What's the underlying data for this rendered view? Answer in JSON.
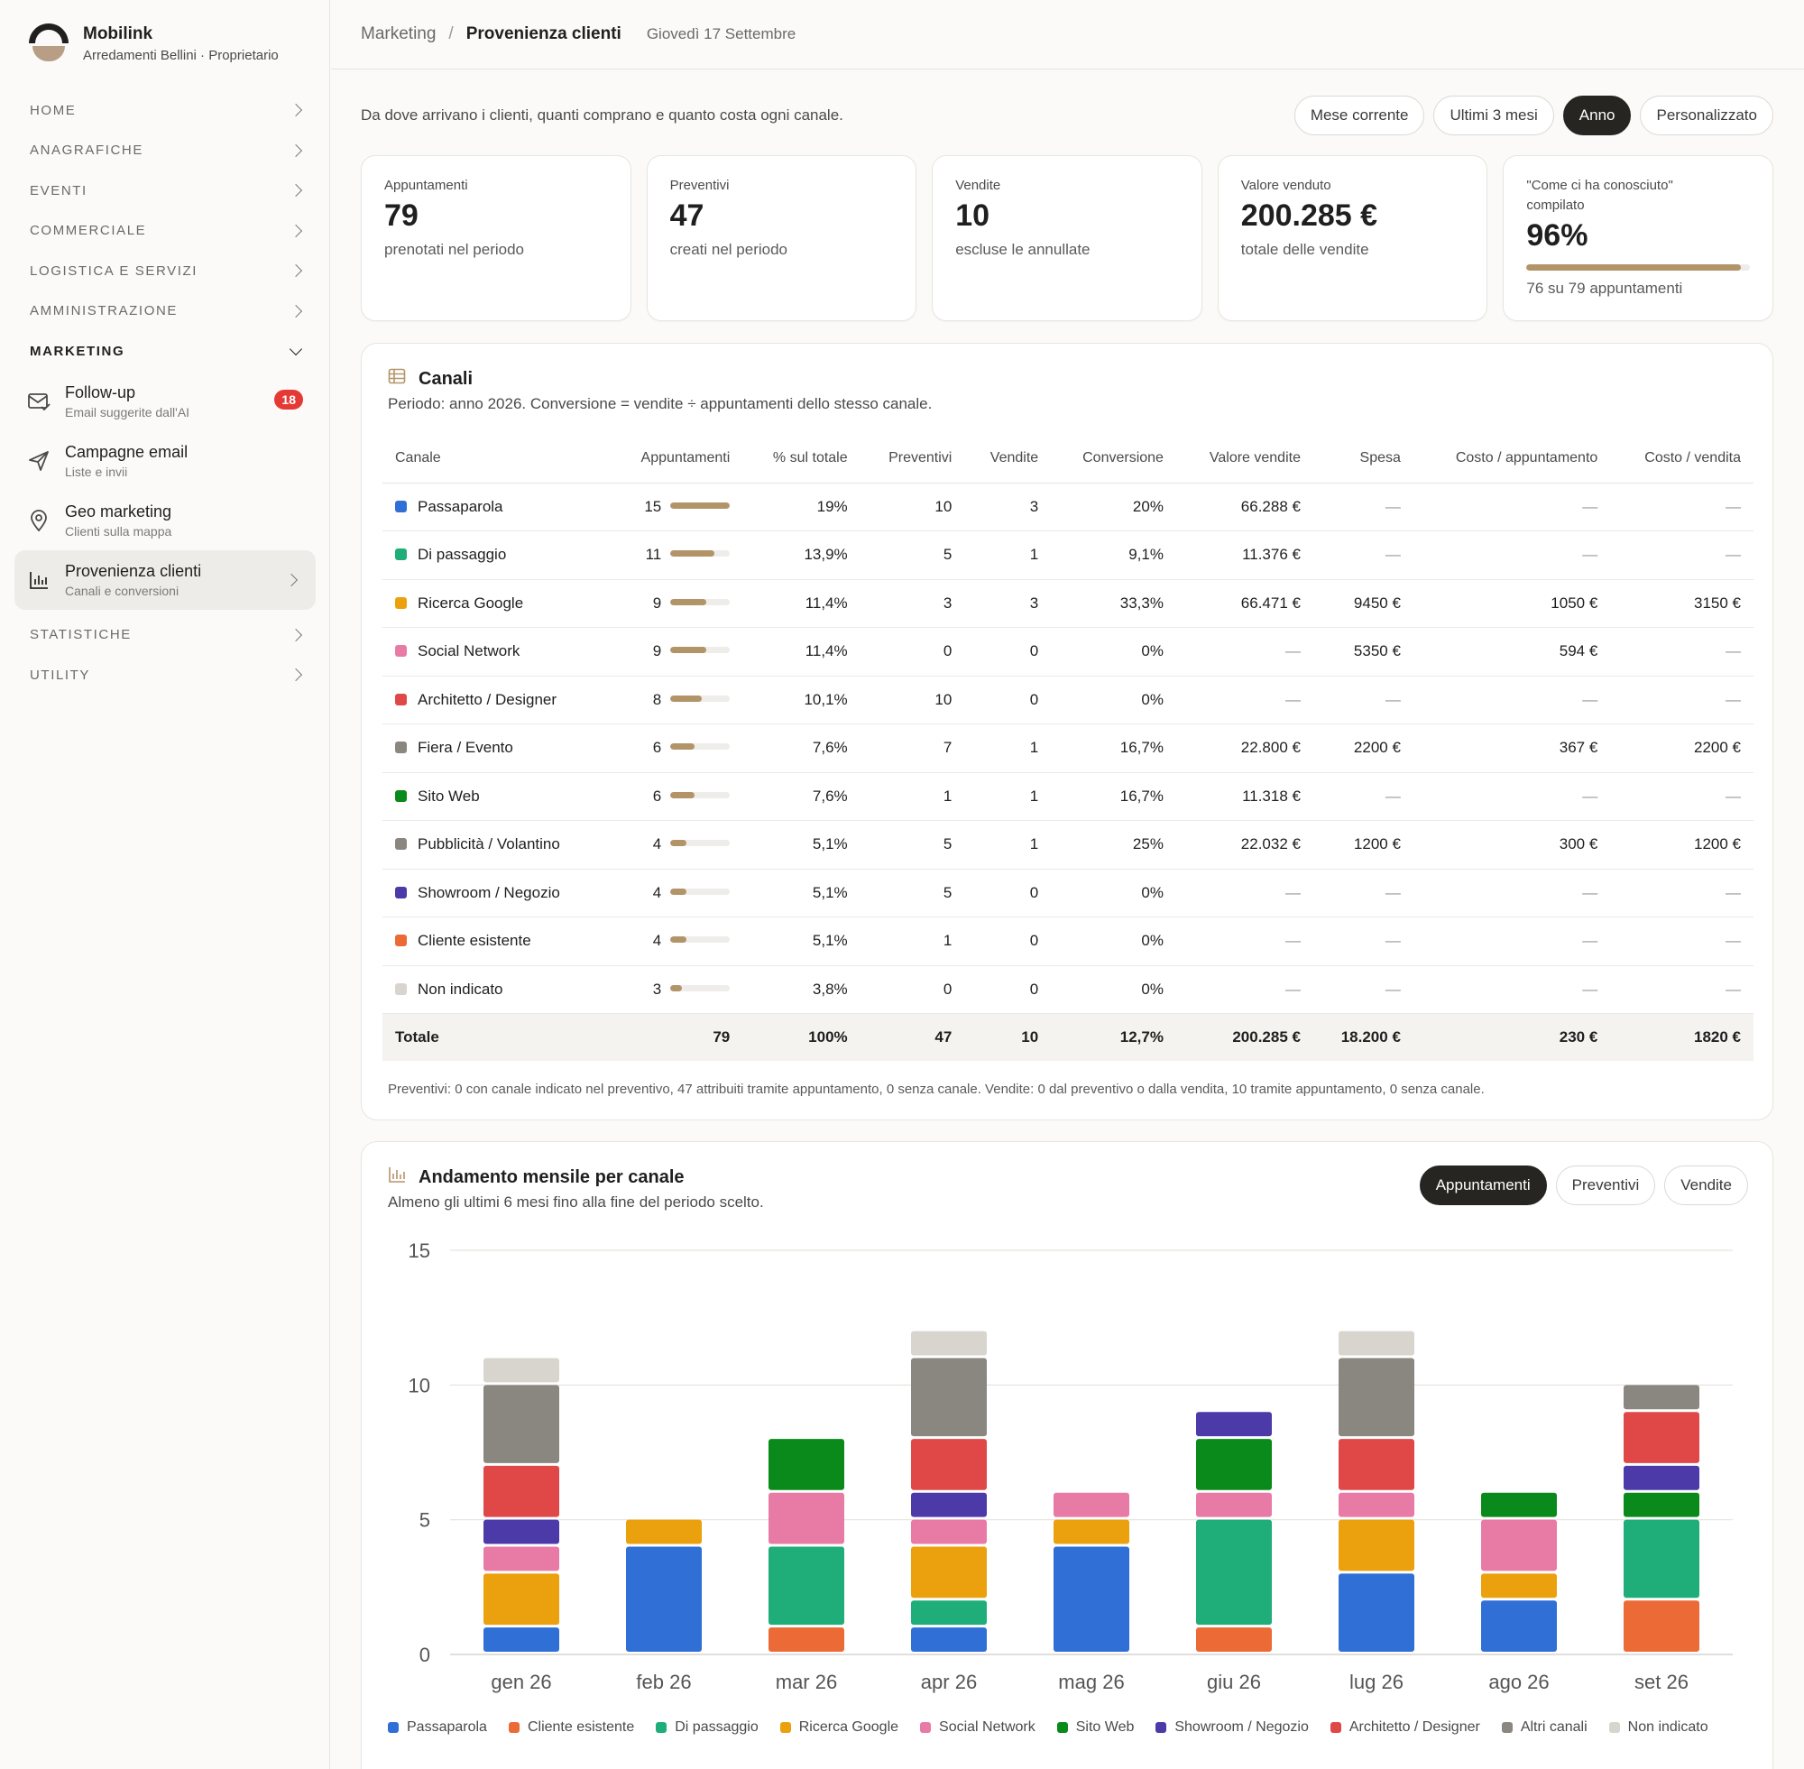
{
  "brand": {
    "name": "Mobilink",
    "subtitle": "Arredamenti Bellini · Proprietario"
  },
  "nav": {
    "sections": [
      {
        "label": "HOME"
      },
      {
        "label": "ANAGRAFICHE"
      },
      {
        "label": "EVENTI"
      },
      {
        "label": "COMMERCIALE"
      },
      {
        "label": "LOGISTICA E SERVIZI"
      },
      {
        "label": "AMMINISTRAZIONE"
      }
    ],
    "marketing": {
      "label": "MARKETING",
      "items": [
        {
          "title": "Follow-up",
          "desc": "Email suggerite dall'AI",
          "badge": "18",
          "icon": "mail-icon"
        },
        {
          "title": "Campagne email",
          "desc": "Liste e invii",
          "icon": "send-icon"
        },
        {
          "title": "Geo marketing",
          "desc": "Clienti sulla mappa",
          "icon": "map-pin-icon"
        },
        {
          "title": "Provenienza clienti",
          "desc": "Canali e conversioni",
          "icon": "bar-chart-icon"
        }
      ]
    },
    "after": [
      {
        "label": "STATISTICHE"
      },
      {
        "label": "UTILITY"
      }
    ]
  },
  "header": {
    "crumb": "Marketing",
    "current": "Provenienza clienti",
    "date": "Giovedì 17 Settembre"
  },
  "intro": "Da dove arrivano i clienti, quanti comprano e quanto costa ogni canale.",
  "range": {
    "options": [
      "Mese corrente",
      "Ultimi 3 mesi",
      "Anno",
      "Personalizzato"
    ],
    "selected": "Anno"
  },
  "kpis": [
    {
      "label": "Appuntamenti",
      "value": "79",
      "desc": "prenotati nel periodo"
    },
    {
      "label": "Preventivi",
      "value": "47",
      "desc": "creati nel periodo"
    },
    {
      "label": "Vendite",
      "value": "10",
      "desc": "escluse le annullate"
    },
    {
      "label": "Valore venduto",
      "value": "200.285 €",
      "desc": "totale delle vendite"
    },
    {
      "label": "\"Come ci ha conosciuto\" compilato",
      "value": "96%",
      "desc": "76 su 79 appuntamenti",
      "progress": 0.96
    }
  ],
  "channels_card": {
    "title": "Canali",
    "subtitle": "Periodo: anno 2026. Conversione = vendite ÷ appuntamenti dello stesso canale.",
    "columns": [
      "Canale",
      "Appuntamenti",
      "% sul totale",
      "Preventivi",
      "Vendite",
      "Conversione",
      "Valore vendite",
      "Spesa",
      "Costo / appuntamento",
      "Costo / vendita"
    ],
    "rows": [
      {
        "name": "Passaparola",
        "color": "#2f6fd6",
        "app": "15",
        "share": 0.19,
        "pct": "19%",
        "prev": "10",
        "vend": "3",
        "conv": "20%",
        "valore": "66.288 €",
        "spesa": "—",
        "cpa": "—",
        "cpv": "—"
      },
      {
        "name": "Di passaggio",
        "color": "#1fae7a",
        "app": "11",
        "share": 0.139,
        "pct": "13,9%",
        "prev": "5",
        "vend": "1",
        "conv": "9,1%",
        "valore": "11.376 €",
        "spesa": "—",
        "cpa": "—",
        "cpv": "—"
      },
      {
        "name": "Ricerca Google",
        "color": "#eba00d",
        "app": "9",
        "share": 0.114,
        "pct": "11,4%",
        "prev": "3",
        "vend": "3",
        "conv": "33,3%",
        "valore": "66.471 €",
        "spesa": "9450 €",
        "cpa": "1050 €",
        "cpv": "3150 €"
      },
      {
        "name": "Social Network",
        "color": "#e87ba6",
        "app": "9",
        "share": 0.114,
        "pct": "11,4%",
        "prev": "0",
        "vend": "0",
        "conv": "0%",
        "valore": "—",
        "spesa": "5350 €",
        "cpa": "594 €",
        "cpv": "—"
      },
      {
        "name": "Architetto / Designer",
        "color": "#e04848",
        "app": "8",
        "share": 0.101,
        "pct": "10,1%",
        "prev": "10",
        "vend": "0",
        "conv": "0%",
        "valore": "—",
        "spesa": "—",
        "cpa": "—",
        "cpv": "—"
      },
      {
        "name": "Fiera / Evento",
        "color": "#8a8780",
        "app": "6",
        "share": 0.076,
        "pct": "7,6%",
        "prev": "7",
        "vend": "1",
        "conv": "16,7%",
        "valore": "22.800 €",
        "spesa": "2200 €",
        "cpa": "367 €",
        "cpv": "2200 €"
      },
      {
        "name": "Sito Web",
        "color": "#0a8a1a",
        "app": "6",
        "share": 0.076,
        "pct": "7,6%",
        "prev": "1",
        "vend": "1",
        "conv": "16,7%",
        "valore": "11.318 €",
        "spesa": "—",
        "cpa": "—",
        "cpv": "—"
      },
      {
        "name": "Pubblicità / Volantino",
        "color": "#8a8780",
        "app": "4",
        "share": 0.051,
        "pct": "5,1%",
        "prev": "5",
        "vend": "1",
        "conv": "25%",
        "valore": "22.032 €",
        "spesa": "1200 €",
        "cpa": "300 €",
        "cpv": "1200 €"
      },
      {
        "name": "Showroom / Negozio",
        "color": "#4b3aa8",
        "app": "4",
        "share": 0.051,
        "pct": "5,1%",
        "prev": "5",
        "vend": "0",
        "conv": "0%",
        "valore": "—",
        "spesa": "—",
        "cpa": "—",
        "cpv": "—"
      },
      {
        "name": "Cliente esistente",
        "color": "#ec6a35",
        "app": "4",
        "share": 0.051,
        "pct": "5,1%",
        "prev": "1",
        "vend": "0",
        "conv": "0%",
        "valore": "—",
        "spesa": "—",
        "cpa": "—",
        "cpv": "—"
      },
      {
        "name": "Non indicato",
        "color": "#d8d5cf",
        "app": "3",
        "share": 0.038,
        "pct": "3,8%",
        "prev": "0",
        "vend": "0",
        "conv": "0%",
        "valore": "—",
        "spesa": "—",
        "cpa": "—",
        "cpv": "—"
      }
    ],
    "total": {
      "name": "Totale",
      "app": "79",
      "pct": "100%",
      "prev": "47",
      "vend": "10",
      "conv": "12,7%",
      "valore": "200.285 €",
      "spesa": "18.200 €",
      "cpa": "230 €",
      "cpv": "1820 €"
    },
    "note": "Preventivi: 0 con canale indicato nel preventivo, 47 attribuiti tramite appuntamento, 0 senza canale. Vendite: 0 dal preventivo o dalla vendita, 10 tramite appuntamento, 0 senza canale."
  },
  "trend_card": {
    "title": "Andamento mensile per canale",
    "subtitle": "Almeno gli ultimi 6 mesi fino alla fine del periodo scelto.",
    "toggle": {
      "options": [
        "Appuntamenti",
        "Preventivi",
        "Vendite"
      ],
      "selected": "Appuntamenti"
    }
  },
  "chart_data": {
    "type": "bar",
    "stacked": true,
    "ylim": [
      0,
      15
    ],
    "yticks": [
      0,
      5,
      10,
      15
    ],
    "grid": true,
    "legend_position": "bottom",
    "categories": [
      "gen 26",
      "feb 26",
      "mar 26",
      "apr 26",
      "mag 26",
      "giu 26",
      "lug 26",
      "ago 26",
      "set 26"
    ],
    "series": [
      {
        "name": "Passaparola",
        "color": "#2f6fd6",
        "values": [
          1,
          4,
          0,
          1,
          4,
          0,
          3,
          2,
          0
        ]
      },
      {
        "name": "Cliente esistente",
        "color": "#ec6a35",
        "values": [
          0,
          0,
          1,
          0,
          0,
          1,
          0,
          0,
          2
        ]
      },
      {
        "name": "Di passaggio",
        "color": "#1fae7a",
        "values": [
          0,
          0,
          3,
          1,
          0,
          4,
          0,
          0,
          3
        ]
      },
      {
        "name": "Ricerca Google",
        "color": "#eba00d",
        "values": [
          2,
          1,
          0,
          2,
          1,
          0,
          2,
          1,
          0
        ]
      },
      {
        "name": "Social Network",
        "color": "#e87ba6",
        "values": [
          1,
          0,
          2,
          1,
          1,
          1,
          1,
          2,
          0
        ]
      },
      {
        "name": "Sito Web",
        "color": "#0a8a1a",
        "values": [
          0,
          0,
          2,
          0,
          0,
          2,
          0,
          1,
          1
        ]
      },
      {
        "name": "Showroom / Negozio",
        "color": "#4b3aa8",
        "values": [
          1,
          0,
          0,
          1,
          0,
          1,
          0,
          0,
          1
        ]
      },
      {
        "name": "Architetto / Designer",
        "color": "#e04848",
        "values": [
          2,
          0,
          0,
          2,
          0,
          0,
          2,
          0,
          2
        ]
      },
      {
        "name": "Altri canali",
        "color": "#8a8780",
        "values": [
          3,
          0,
          0,
          3,
          0,
          0,
          3,
          0,
          1
        ]
      },
      {
        "name": "Non indicato",
        "color": "#d8d5cf",
        "values": [
          1,
          0,
          0,
          1,
          0,
          0,
          1,
          0,
          0
        ]
      }
    ]
  }
}
